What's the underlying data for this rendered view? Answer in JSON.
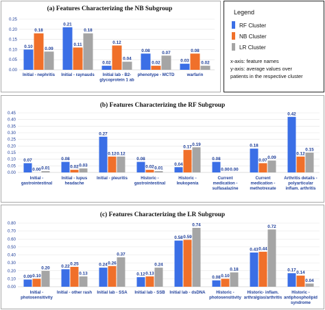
{
  "legend": {
    "title": "Legend",
    "items": [
      {
        "name": "RF Cluster",
        "color": "#3b6fe6"
      },
      {
        "name": "NB Cluster",
        "color": "#f0702a"
      },
      {
        "name": "LR Cluster",
        "color": "#a5a5a5"
      }
    ],
    "notes": [
      "x-axis: feature names",
      "y-axis: average values over",
      "patients in the respective cluster"
    ]
  },
  "chart_data": [
    {
      "type": "bar",
      "title": "(a)   Features Characterizing the NB Subgroup",
      "ylim": [
        0,
        0.25
      ],
      "yticks": [
        "0.00",
        "0.05",
        "0.10",
        "0.15",
        "0.20",
        "0.25"
      ],
      "categories": [
        [
          "Initial - nephritis"
        ],
        [
          "Initial - raynauds"
        ],
        [
          "Initial lab - B2-",
          "glycoprotein 1 ab"
        ],
        [
          "phenotype - MCTD"
        ],
        [
          "warfarin"
        ]
      ],
      "series": [
        {
          "name": "RF Cluster",
          "values": [
            0.1,
            0.21,
            0.02,
            0.08,
            0.03
          ],
          "labels": [
            "0.10",
            "0.21",
            "0.02",
            "0.08",
            "0.03"
          ]
        },
        {
          "name": "NB Cluster",
          "values": [
            0.18,
            0.11,
            0.12,
            0.02,
            0.08
          ],
          "labels": [
            "0.18",
            "0.11",
            "0.12",
            "0.02",
            "0.08"
          ]
        },
        {
          "name": "LR Cluster",
          "values": [
            0.09,
            0.18,
            0.04,
            0.07,
            0.02
          ],
          "labels": [
            "0.09",
            "0.18",
            "0.04",
            "0.07",
            "0.02"
          ]
        }
      ]
    },
    {
      "type": "bar",
      "title": "(b)   Features Characterizing the RF Subgroup",
      "ylim": [
        0,
        0.45
      ],
      "yticks": [
        "0.00",
        "0.05",
        "0.10",
        "0.15",
        "0.20",
        "0.25",
        "0.30",
        "0.35",
        "0.40",
        "0.45"
      ],
      "categories": [
        [
          "Initial -",
          "gastrointestinal"
        ],
        [
          "Initial - lupus",
          "headache"
        ],
        [
          "Initial - pleuritis"
        ],
        [
          "Historic -",
          "gastrointestinal"
        ],
        [
          "Historic -",
          "leukopenia"
        ],
        [
          "Current",
          "medication -",
          "sulfasalazine"
        ],
        [
          "Current",
          "medication -",
          "methotrexate"
        ],
        [
          "Arthritis details -",
          "polyarticular",
          "inflam. arthritis"
        ]
      ],
      "series": [
        {
          "name": "RF Cluster",
          "values": [
            0.07,
            0.08,
            0.27,
            0.08,
            0.04,
            0.08,
            0.18,
            0.42
          ],
          "labels": [
            "0.07",
            "0.08",
            "0.27",
            "0.08",
            "0.04",
            "0.08",
            "0.18",
            "0.42"
          ]
        },
        {
          "name": "NB Cluster",
          "values": [
            0.0,
            0.02,
            0.12,
            0.02,
            0.17,
            0.0,
            0.07,
            0.12
          ],
          "labels": [
            "0.00",
            "0.02",
            "0.12",
            "0.02",
            "0.17",
            "0.00",
            "0.07",
            "0.12"
          ]
        },
        {
          "name": "LR Cluster",
          "values": [
            0.01,
            0.03,
            0.12,
            0.01,
            0.19,
            0.0,
            0.09,
            0.15
          ],
          "labels": [
            "0.01",
            "0.03",
            "0.12",
            "0.01",
            "0.19",
            "0.00",
            "0.09",
            "0.15"
          ]
        }
      ]
    },
    {
      "type": "bar",
      "title": "(c)   Features Characterizing the LR Subgroup",
      "ylim": [
        0,
        0.8
      ],
      "yticks": [
        "0.00",
        "0.10",
        "0.20",
        "0.30",
        "0.40",
        "0.50",
        "0.60",
        "0.70",
        "0.80"
      ],
      "categories": [
        [
          "Initial -",
          "photosensitivity"
        ],
        [
          "Initial - other rash"
        ],
        [
          "Initial lab - SSA"
        ],
        [
          "Initial lab - SSB"
        ],
        [
          "Initial lab - dsDNA"
        ],
        [
          "Historic -",
          "photosensitivity"
        ],
        [
          "Historic- inflam.",
          "arthralgias/arthritis"
        ],
        [
          "Historic -",
          "antiphospholipid",
          "syndrome"
        ]
      ],
      "series": [
        {
          "name": "RF Cluster",
          "values": [
            0.09,
            0.22,
            0.24,
            0.12,
            0.58,
            0.08,
            0.43,
            0.17
          ],
          "labels": [
            "0.09",
            "0.22",
            "0.24",
            "0.12",
            "0.58",
            "0.08",
            "0.43",
            "0.17"
          ]
        },
        {
          "name": "NB Cluster",
          "values": [
            0.1,
            0.25,
            0.26,
            0.13,
            0.59,
            0.1,
            0.44,
            0.14
          ],
          "labels": [
            "0.10",
            "0.25",
            "0.26",
            "0.13",
            "0.59",
            "0.10",
            "0.44",
            "0.14"
          ]
        },
        {
          "name": "LR Cluster",
          "values": [
            0.2,
            0.13,
            0.37,
            0.24,
            0.74,
            0.18,
            0.72,
            0.04
          ],
          "labels": [
            "0.20",
            "0.13",
            "0.37",
            "0.24",
            "0.74",
            "0.18",
            "0.72",
            "0.04"
          ]
        }
      ]
    }
  ]
}
